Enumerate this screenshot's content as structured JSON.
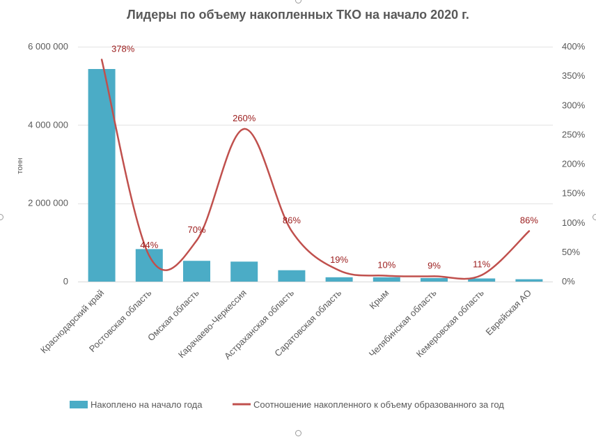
{
  "chart_data": {
    "type": "bar",
    "title": "Лидеры по объему накопленных ТКО на начало 2020 г.",
    "ylabel_left": "тонн",
    "ylim_left": [
      0,
      6000000
    ],
    "left_ticks": [
      {
        "value": 0,
        "label": "0"
      },
      {
        "value": 2000000,
        "label": "2 000 000"
      },
      {
        "value": 4000000,
        "label": "4 000 000"
      },
      {
        "value": 6000000,
        "label": "6 000 000"
      }
    ],
    "ylim_right": [
      0,
      400
    ],
    "right_ticks": [
      {
        "value": 0,
        "label": "0%"
      },
      {
        "value": 50,
        "label": "50%"
      },
      {
        "value": 100,
        "label": "100%"
      },
      {
        "value": 150,
        "label": "150%"
      },
      {
        "value": 200,
        "label": "200%"
      },
      {
        "value": 250,
        "label": "250%"
      },
      {
        "value": 300,
        "label": "300%"
      },
      {
        "value": 350,
        "label": "350%"
      },
      {
        "value": 400,
        "label": "400%"
      }
    ],
    "categories": [
      "Краснодарский край",
      "Ростовская область",
      "Омская область",
      "Карачаево-Черкессия",
      "Астраханская область",
      "Саратовская область",
      "Крым",
      "Челябинская область",
      "Кемеровская область",
      "Еврейская АО"
    ],
    "series": [
      {
        "name": "Накоплено на начало года",
        "type": "bar",
        "axis": "left",
        "color": "#4bacc6",
        "values": [
          5430000,
          830000,
          530000,
          510000,
          290000,
          110000,
          110000,
          90000,
          80000,
          60000
        ]
      },
      {
        "name": "Соотношение накопленного к объему образованного за год",
        "type": "line",
        "axis": "right",
        "color": "#c0504d",
        "values": [
          378,
          44,
          70,
          260,
          86,
          19,
          10,
          9,
          11,
          86
        ],
        "labels": [
          "378%",
          "44%",
          "70%",
          "260%",
          "86%",
          "19%",
          "10%",
          "9%",
          "11%",
          "86%"
        ]
      }
    ],
    "grid": true,
    "legend_position": "bottom"
  }
}
